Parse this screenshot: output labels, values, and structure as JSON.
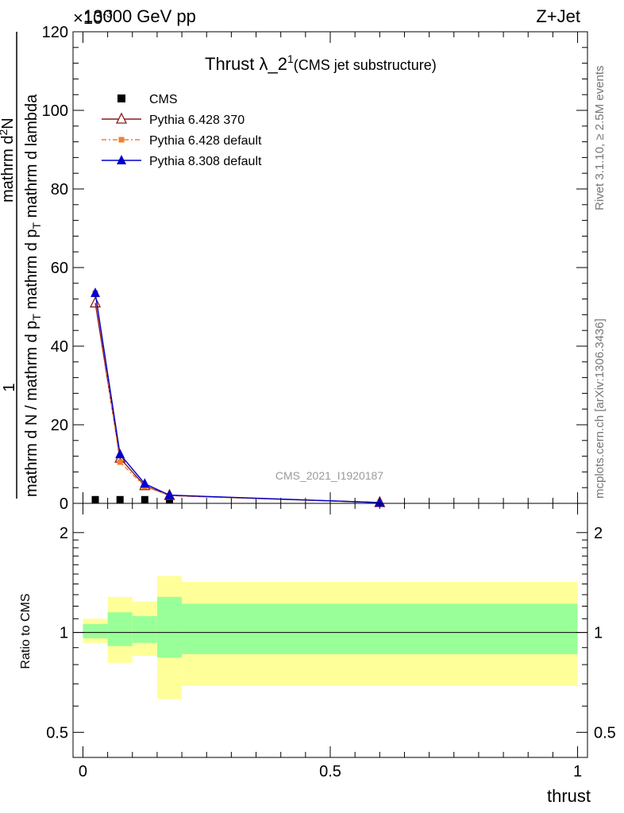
{
  "header": {
    "beam": "13000 GeV pp",
    "process": "Z+Jet",
    "exponent_label": "×10",
    "exponent_power": "-3"
  },
  "plot_title": {
    "main": "Thrust λ_2",
    "superscript": "1",
    "subtitle": "(CMS jet substructure)"
  },
  "side_labels": {
    "rivet": "Rivet 3.1.10, ≥ 2.5M events",
    "mcplots": "mcplots.cern.ch [arXiv:1306.3436]"
  },
  "watermark": "CMS_2021_I1920187",
  "y_label": {
    "prefix": "1",
    "denominator_text": "mathrm d N / mathrm d p",
    "denominator_sub": "T",
    "numerator_text": "mathrm d",
    "numerator_sup": "2",
    "numerator_rest": "N",
    "main_denominator": "mathrm d p",
    "main_denominator_sub": "T",
    "main_denominator_rest": "mathrm d lambda"
  },
  "legend": [
    {
      "name": "CMS",
      "marker": "square-filled",
      "color": "#000000"
    },
    {
      "name": "Pythia 6.428 370",
      "marker": "triangle-open",
      "color": "#8b1a1a"
    },
    {
      "name": "Pythia 6.428 default",
      "marker": "square-small",
      "color": "#f08030"
    },
    {
      "name": "Pythia 8.308 default",
      "marker": "triangle-filled",
      "color": "#0000cc"
    }
  ],
  "chart_data": [
    {
      "type": "line",
      "panel": "main",
      "x_ticks": [
        "0",
        "0.5",
        "1"
      ],
      "y_ticks": [
        "0",
        "20",
        "40",
        "60",
        "80",
        "100",
        "120"
      ],
      "xlim": [
        -0.02,
        1.02
      ],
      "ylim": [
        0,
        120
      ],
      "series": [
        {
          "name": "CMS",
          "x": [
            0.025,
            0.075,
            0.125,
            0.175
          ],
          "y": [
            0.05,
            0.05,
            0.05,
            0.05
          ]
        },
        {
          "name": "Pythia 6.428 370",
          "x": [
            0.025,
            0.075,
            0.125,
            0.175,
            0.6
          ],
          "y": [
            51,
            11.5,
            4.5,
            2.0,
            0.2
          ]
        },
        {
          "name": "Pythia 6.428 default",
          "x": [
            0.025,
            0.075,
            0.125,
            0.175,
            0.6
          ],
          "y": [
            53.5,
            10.5,
            4.3,
            2.0,
            0.2
          ]
        },
        {
          "name": "Pythia 8.308 default",
          "x": [
            0.025,
            0.075,
            0.125,
            0.175,
            0.6
          ],
          "y": [
            53.5,
            12.5,
            5.0,
            2.1,
            0.2
          ]
        }
      ]
    },
    {
      "type": "area",
      "panel": "ratio",
      "ylabel": "Ratio to CMS",
      "y_ticks": [
        "0.5",
        "1",
        "2"
      ],
      "x_ticks": [
        "0",
        "0.5",
        "1"
      ],
      "xlabel": "thrust",
      "ylim": [
        0.42,
        2.45
      ],
      "xlim": [
        -0.02,
        1.02
      ],
      "bins": [
        {
          "x0": 0.0,
          "x1": 0.05,
          "outer": [
            0.93,
            1.1
          ],
          "inner": [
            0.96,
            1.06
          ]
        },
        {
          "x0": 0.05,
          "x1": 0.1,
          "outer": [
            0.81,
            1.28
          ],
          "inner": [
            0.91,
            1.15
          ]
        },
        {
          "x0": 0.1,
          "x1": 0.15,
          "outer": [
            0.85,
            1.24
          ],
          "inner": [
            0.93,
            1.12
          ]
        },
        {
          "x0": 0.15,
          "x1": 0.2,
          "outer": [
            0.63,
            1.48
          ],
          "inner": [
            0.84,
            1.28
          ]
        },
        {
          "x0": 0.2,
          "x1": 1.0,
          "outer": [
            0.69,
            1.42
          ],
          "inner": [
            0.86,
            1.22
          ]
        }
      ]
    }
  ],
  "colors": {
    "band_outer": "#ffff99",
    "band_inner": "#99ff99"
  }
}
